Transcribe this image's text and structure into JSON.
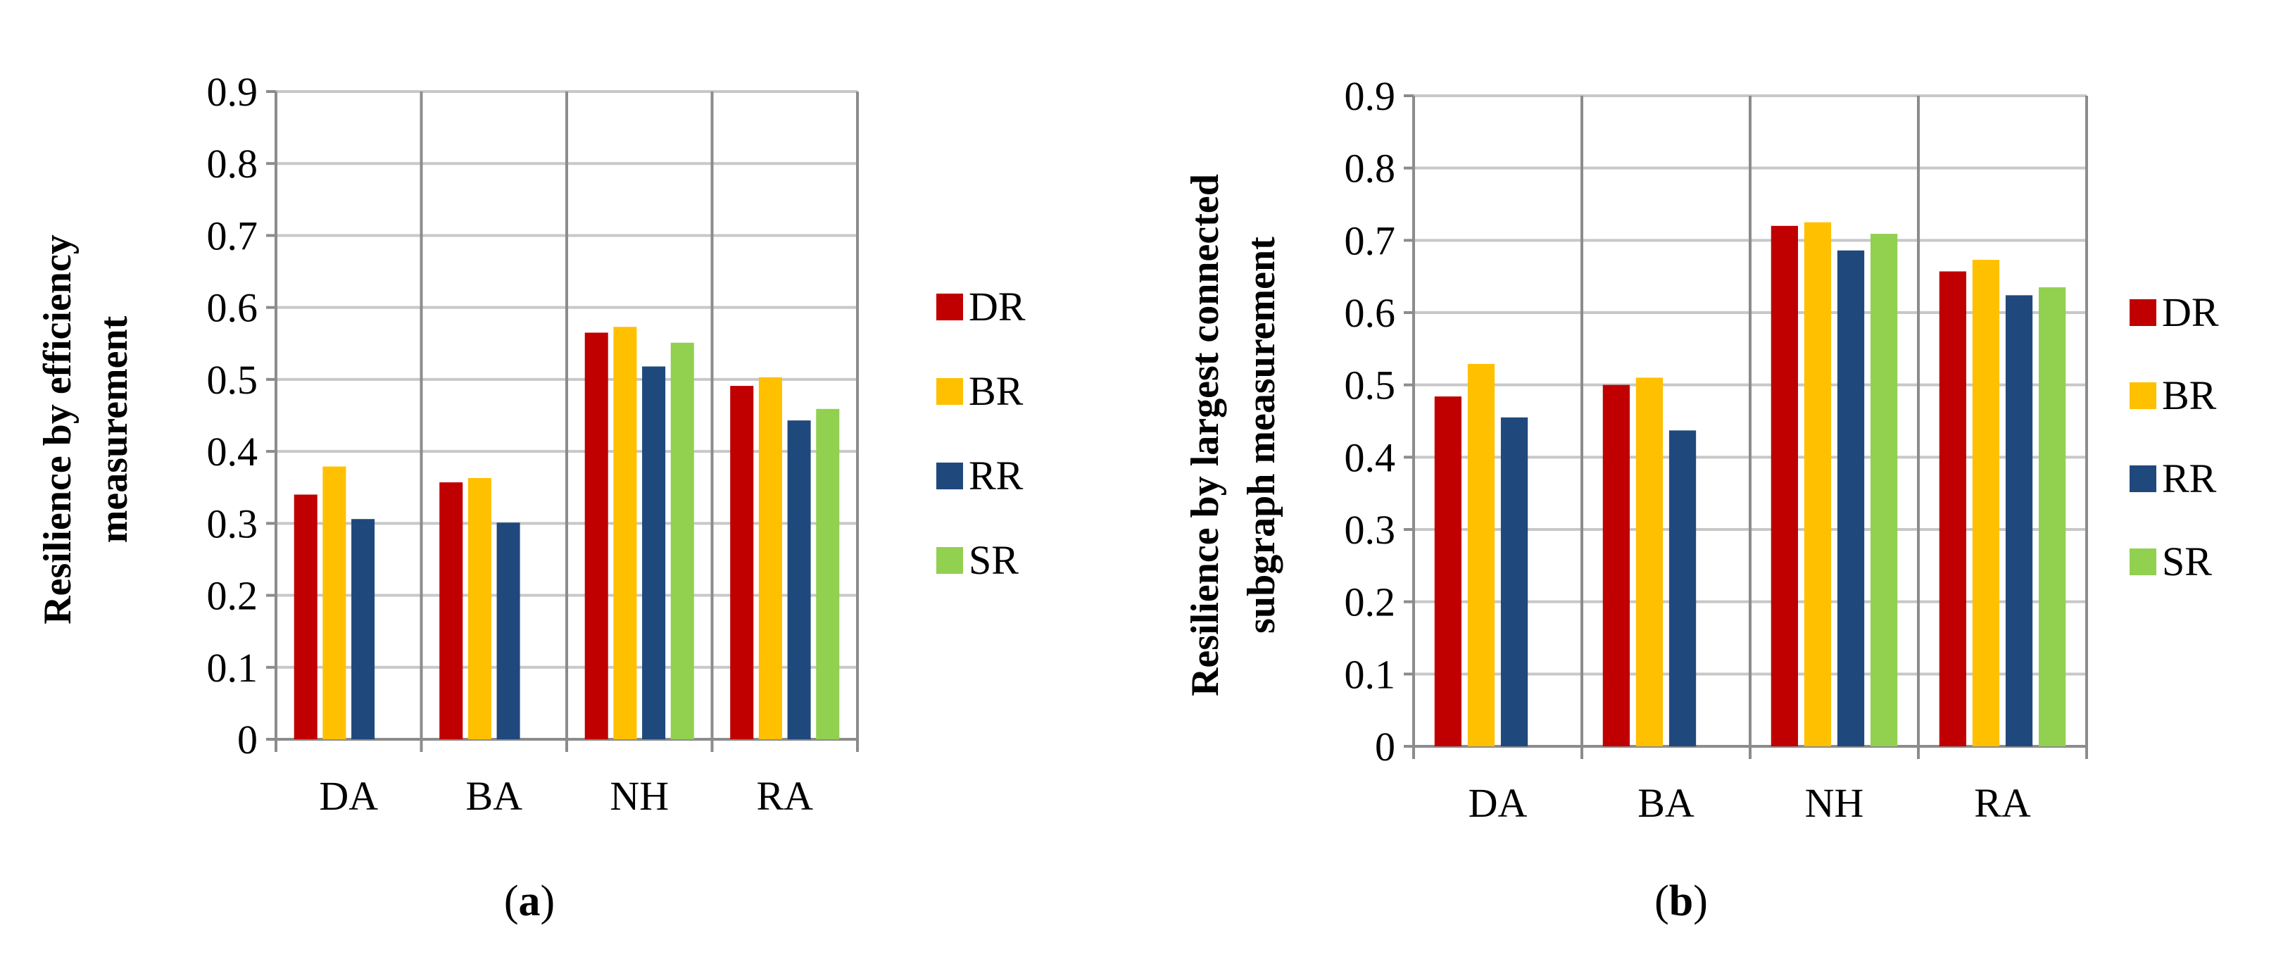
{
  "colors": {
    "DR": "#c00000",
    "BR": "#ffc000",
    "RR": "#1f497d",
    "SR": "#92d050"
  },
  "chart_data": [
    {
      "type": "bar",
      "panel": "a",
      "caption_letter": "a",
      "categories": [
        "DA",
        "BA",
        "NH",
        "RA"
      ],
      "series": [
        {
          "name": "DR",
          "values": [
            0.34,
            0.357,
            0.565,
            0.491
          ]
        },
        {
          "name": "BR",
          "values": [
            0.379,
            0.363,
            0.573,
            0.503
          ]
        },
        {
          "name": "RR",
          "values": [
            0.306,
            0.301,
            0.518,
            0.443
          ]
        },
        {
          "name": "SR",
          "values": [
            null,
            null,
            0.551,
            0.459
          ]
        }
      ],
      "ylabel_line1": "Resilience by efficiency",
      "ylabel_line2": "measurement",
      "ylim": [
        0,
        0.9
      ],
      "yticks": [
        "0",
        "0.1",
        "0.2",
        "0.3",
        "0.4",
        "0.5",
        "0.6",
        "0.7",
        "0.8",
        "0.9"
      ],
      "grid": true,
      "legend": "right"
    },
    {
      "type": "bar",
      "panel": "b",
      "caption_letter": "b",
      "categories": [
        "DA",
        "BA",
        "NH",
        "RA"
      ],
      "series": [
        {
          "name": "DR",
          "values": [
            0.484,
            0.5,
            0.72,
            0.657
          ]
        },
        {
          "name": "BR",
          "values": [
            0.529,
            0.51,
            0.725,
            0.673
          ]
        },
        {
          "name": "RR",
          "values": [
            0.455,
            0.437,
            0.686,
            0.624
          ]
        },
        {
          "name": "SR",
          "values": [
            null,
            null,
            0.709,
            0.635
          ]
        }
      ],
      "ylabel_line1": "Resilience by largest connected",
      "ylabel_line2": "subgraph measurement",
      "ylim": [
        0,
        0.9
      ],
      "yticks": [
        "0",
        "0.1",
        "0.2",
        "0.3",
        "0.4",
        "0.5",
        "0.6",
        "0.7",
        "0.8",
        "0.9"
      ],
      "grid": true,
      "legend": "right"
    }
  ]
}
